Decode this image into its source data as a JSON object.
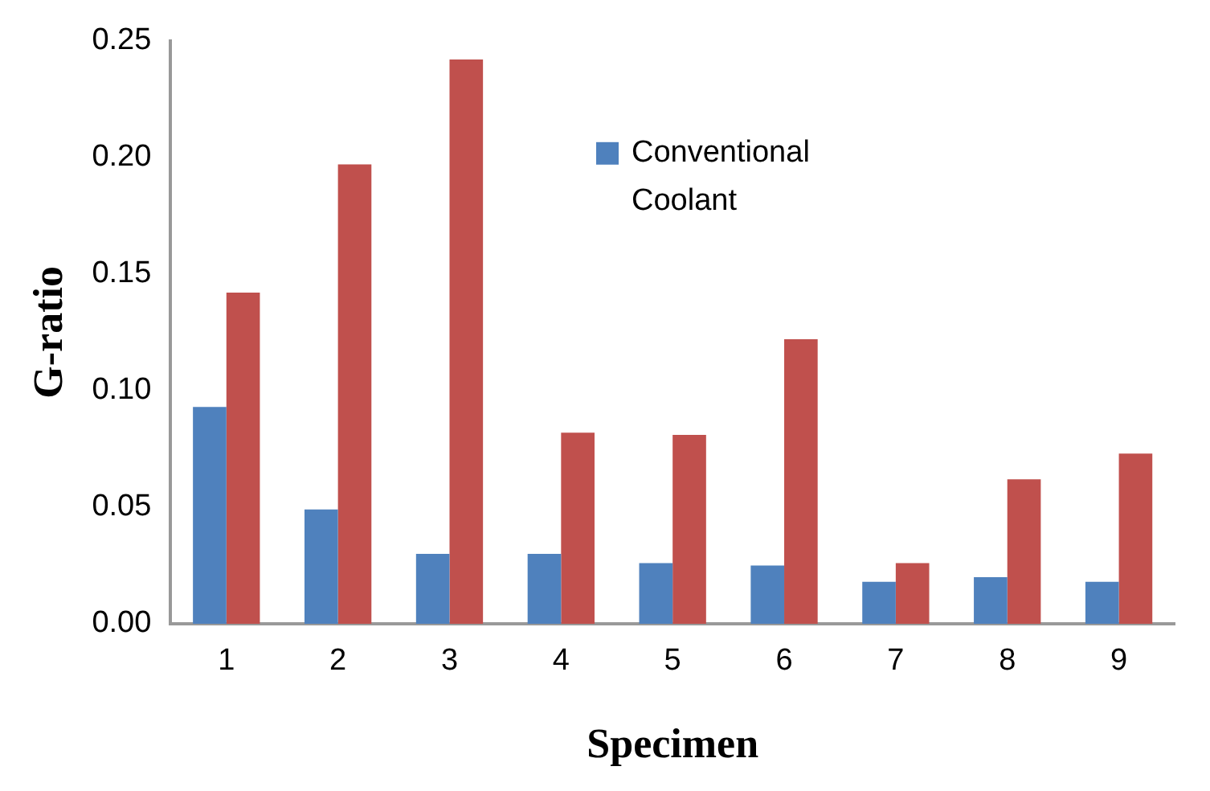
{
  "chart_data": {
    "type": "bar",
    "xlabel": "Specimen",
    "ylabel": "G-ratio",
    "categories": [
      "1",
      "2",
      "3",
      "4",
      "5",
      "6",
      "7",
      "8",
      "9"
    ],
    "series": [
      {
        "name": "Conventional Coolant",
        "color": "#4f81bd",
        "values": [
          0.093,
          0.049,
          0.03,
          0.03,
          0.026,
          0.025,
          0.018,
          0.02,
          0.018
        ]
      },
      {
        "color": "#c0504d",
        "values": [
          0.142,
          0.197,
          0.242,
          0.082,
          0.081,
          0.122,
          0.026,
          0.062,
          0.073
        ]
      }
    ],
    "ylim": [
      0,
      0.25
    ],
    "yticks": [
      {
        "value": 0,
        "label": "0.00"
      },
      {
        "value": 0.05,
        "label": "0.05"
      },
      {
        "value": 0.1,
        "label": "0.10"
      },
      {
        "value": 0.15,
        "label": "0.15"
      },
      {
        "value": 0.2,
        "label": "0.20"
      },
      {
        "value": 0.25,
        "label": "0.25"
      }
    ],
    "grid": false,
    "legend": "top right"
  }
}
